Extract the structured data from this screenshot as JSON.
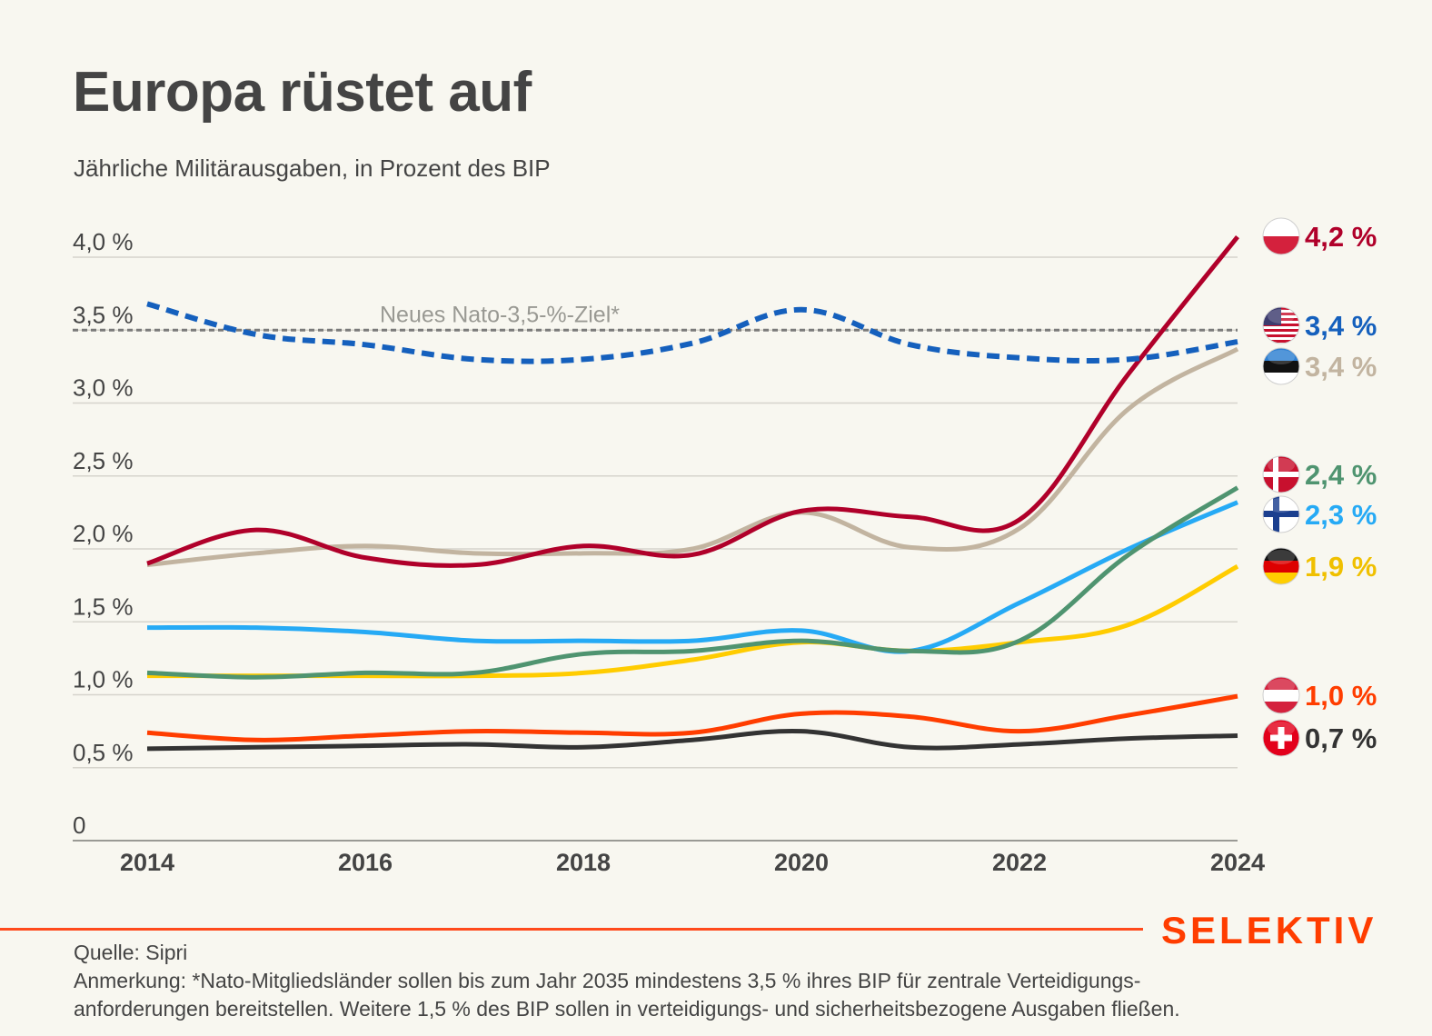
{
  "header": {
    "title": "Europa rüstet auf",
    "subtitle": "Jährliche Militärausgaben, in Prozent des BIP"
  },
  "footer": {
    "source": "Quelle: Sipri",
    "note_line1": "Anmerkung: *Nato-Mitgliedsländer sollen bis zum Jahr 2035 mindestens 3,5 % ihres BIP für zentrale Verteidigungs-",
    "note_line2": "anforderungen bereitstellen. Weitere 1,5 % des BIP sollen in verteidigungs- und sicherheitsbezogene Ausgaben fließen.",
    "brand": "SELEKTIV",
    "brand_color": "#ff3d00"
  },
  "chart_data": {
    "type": "line",
    "title": "Europa rüstet auf",
    "subtitle": "Jährliche Militärausgaben, in Prozent des BIP",
    "xlabel": "",
    "ylabel": "",
    "x": [
      2014,
      2015,
      2016,
      2017,
      2018,
      2019,
      2020,
      2021,
      2022,
      2023,
      2024
    ],
    "x_tick_labels": [
      "2014",
      "2016",
      "2018",
      "2020",
      "2022",
      "2024"
    ],
    "x_ticks": [
      2014,
      2016,
      2018,
      2020,
      2022,
      2024
    ],
    "y_ticks": [
      0,
      0.5,
      1.0,
      1.5,
      2.0,
      2.5,
      3.0,
      3.5,
      4.0
    ],
    "y_tick_labels": [
      "0",
      "0,5 %",
      "1,0 %",
      "1,5 %",
      "2,0 %",
      "2,5 %",
      "3,0 %",
      "3,5 %",
      "4,0 %"
    ],
    "ylim": [
      0,
      4.0
    ],
    "xlim": [
      2014,
      2024
    ],
    "grid": true,
    "legend": "end-labels-right",
    "reference_line": {
      "value": 3.5,
      "label": "Neues Nato-3,5-%-Ziel*",
      "color": "#7a7a7a",
      "style": "dashed"
    },
    "series": [
      {
        "name": "USA",
        "flag": "us-flag",
        "color": "#1560bd",
        "style": "dashed",
        "end_label": "3,4 %",
        "values": [
          3.68,
          3.47,
          3.4,
          3.3,
          3.3,
          3.41,
          3.64,
          3.4,
          3.31,
          3.3,
          3.42
        ]
      },
      {
        "name": "Estland",
        "flag": "estonia-flag",
        "color": "#c2b4a0",
        "style": "solid",
        "end_label": "3,4 %",
        "values": [
          1.89,
          1.97,
          2.02,
          1.97,
          1.97,
          2.0,
          2.25,
          2.01,
          2.14,
          2.96,
          3.37
        ]
      },
      {
        "name": "Polen",
        "flag": "poland-flag",
        "color": "#b0002a",
        "style": "solid",
        "end_label": "4,2 %",
        "values": [
          1.9,
          2.13,
          1.94,
          1.89,
          2.02,
          1.96,
          2.26,
          2.22,
          2.2,
          3.2,
          4.14
        ]
      },
      {
        "name": "Dänemark",
        "flag": "denmark-flag",
        "color": "#4f9470",
        "style": "solid",
        "end_label": "2,4 %",
        "values": [
          1.15,
          1.12,
          1.15,
          1.15,
          1.28,
          1.3,
          1.37,
          1.3,
          1.37,
          1.96,
          2.42
        ]
      },
      {
        "name": "Finnland",
        "flag": "finland-flag",
        "color": "#26aaf5",
        "style": "solid",
        "end_label": "2,3 %",
        "values": [
          1.46,
          1.46,
          1.43,
          1.37,
          1.37,
          1.37,
          1.44,
          1.3,
          1.63,
          2.0,
          2.32
        ]
      },
      {
        "name": "Deutschland",
        "flag": "germany-flag",
        "color": "#ffcc00",
        "style": "solid",
        "end_label": "1,9 %",
        "label_color": "#f0c000",
        "values": [
          1.13,
          1.13,
          1.13,
          1.13,
          1.15,
          1.24,
          1.36,
          1.3,
          1.36,
          1.48,
          1.88
        ]
      },
      {
        "name": "Österreich",
        "flag": "austria-flag",
        "color": "#ff3d00",
        "style": "solid",
        "end_label": "1,0 %",
        "values": [
          0.74,
          0.69,
          0.72,
          0.75,
          0.74,
          0.74,
          0.87,
          0.85,
          0.75,
          0.86,
          0.99
        ]
      },
      {
        "name": "Schweiz",
        "flag": "switzerland-flag",
        "color": "#333333",
        "style": "solid",
        "end_label": "0,7 %",
        "values": [
          0.63,
          0.64,
          0.65,
          0.66,
          0.64,
          0.69,
          0.75,
          0.64,
          0.66,
          0.7,
          0.72
        ]
      }
    ]
  }
}
